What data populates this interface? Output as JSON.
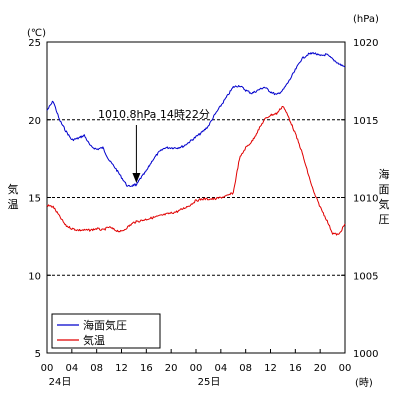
{
  "chart_data": {
    "type": "line",
    "x_axis": {
      "tick_labels": [
        "00",
        "04",
        "08",
        "12",
        "16",
        "20",
        "00",
        "04",
        "08",
        "12",
        "16",
        "20",
        "00"
      ],
      "tick_hours": [
        0,
        4,
        8,
        12,
        16,
        20,
        24,
        28,
        32,
        36,
        40,
        44,
        48
      ],
      "day_labels": [
        {
          "hour": 0,
          "text": "24日"
        },
        {
          "hour": 24,
          "text": "25日"
        }
      ],
      "unit": "(時)",
      "range": [
        0,
        48
      ]
    },
    "y_left": {
      "unit": "(℃)",
      "label": "気温",
      "range": [
        5,
        25
      ],
      "ticks": [
        5,
        10,
        15,
        20,
        25
      ],
      "tick_labels": [
        "5",
        "10",
        "15",
        "20",
        "25"
      ]
    },
    "y_right": {
      "unit": "(hPa)",
      "label": "海面気圧",
      "range": [
        1000,
        1020
      ],
      "ticks": [
        1000,
        1005,
        1010,
        1015,
        1020
      ],
      "tick_labels": [
        "1000",
        "1005",
        "1010",
        "1015",
        "1020"
      ]
    },
    "grid": "dashed horizontal lines at 10, 15, 20 ℃",
    "legend": {
      "placement": "bottom-left"
    },
    "series": [
      {
        "name": "海面気圧",
        "axis": "right",
        "color": "#0000cc",
        "points": [
          [
            0,
            1015.6
          ],
          [
            1,
            1016.2
          ],
          [
            2,
            1015
          ],
          [
            3,
            1014.3
          ],
          [
            4,
            1013.7
          ],
          [
            5,
            1013.8
          ],
          [
            6,
            1014
          ],
          [
            7,
            1013.3
          ],
          [
            8,
            1013.1
          ],
          [
            9,
            1013.2
          ],
          [
            10,
            1012.4
          ],
          [
            11,
            1011.9
          ],
          [
            12,
            1011.3
          ],
          [
            13,
            1010.7
          ],
          [
            14,
            1010.8
          ],
          [
            14.4,
            1010.8
          ],
          [
            15,
            1011.2
          ],
          [
            16,
            1011.7
          ],
          [
            17,
            1012.4
          ],
          [
            18,
            1012.9
          ],
          [
            19,
            1013.2
          ],
          [
            20,
            1013.2
          ],
          [
            21,
            1013.2
          ],
          [
            22,
            1013.3
          ],
          [
            23,
            1013.6
          ],
          [
            24,
            1013.9
          ],
          [
            25,
            1014.2
          ],
          [
            26,
            1014.6
          ],
          [
            27,
            1015.3
          ],
          [
            28,
            1015.9
          ],
          [
            29,
            1016.5
          ],
          [
            30,
            1017.1
          ],
          [
            31,
            1017.2
          ],
          [
            32,
            1016.9
          ],
          [
            33,
            1016.7
          ],
          [
            34,
            1016.9
          ],
          [
            35,
            1017.1
          ],
          [
            36,
            1016.8
          ],
          [
            37,
            1016.6
          ],
          [
            38,
            1016.9
          ],
          [
            39,
            1017.5
          ],
          [
            40,
            1018.2
          ],
          [
            41,
            1018.9
          ],
          [
            42,
            1019.2
          ],
          [
            43,
            1019.3
          ],
          [
            44,
            1019.1
          ],
          [
            45,
            1019.2
          ],
          [
            46,
            1018.9
          ],
          [
            47,
            1018.6
          ],
          [
            48,
            1018.4
          ]
        ]
      },
      {
        "name": "気温",
        "axis": "left",
        "color": "#e00000",
        "points": [
          [
            0,
            14.5
          ],
          [
            1,
            14.4
          ],
          [
            2,
            13.8
          ],
          [
            3,
            13.2
          ],
          [
            4,
            13
          ],
          [
            5,
            12.9
          ],
          [
            6,
            12.9
          ],
          [
            7,
            12.9
          ],
          [
            8,
            13
          ],
          [
            9,
            12.9
          ],
          [
            10,
            13.1
          ],
          [
            11,
            12.9
          ],
          [
            12,
            12.8
          ],
          [
            13,
            13.1
          ],
          [
            14,
            13.4
          ],
          [
            15,
            13.5
          ],
          [
            16,
            13.6
          ],
          [
            17,
            13.7
          ],
          [
            18,
            13.8
          ],
          [
            19,
            13.9
          ],
          [
            20,
            14
          ],
          [
            21,
            14.1
          ],
          [
            22,
            14.3
          ],
          [
            23,
            14.5
          ],
          [
            24,
            14.8
          ],
          [
            25,
            14.9
          ],
          [
            26,
            14.9
          ],
          [
            27,
            14.9
          ],
          [
            28,
            15
          ],
          [
            29,
            15.1
          ],
          [
            30,
            15.3
          ],
          [
            31,
            17.5
          ],
          [
            32,
            18.2
          ],
          [
            33,
            18.6
          ],
          [
            34,
            19.3
          ],
          [
            35,
            20
          ],
          [
            36,
            20.3
          ],
          [
            37,
            20.4
          ],
          [
            38,
            20.9
          ],
          [
            39,
            20.1
          ],
          [
            40,
            19.1
          ],
          [
            41,
            18
          ],
          [
            42,
            16.6
          ],
          [
            43,
            15.3
          ],
          [
            44,
            14.4
          ],
          [
            45,
            13.6
          ],
          [
            46,
            12.7
          ],
          [
            47,
            12.6
          ],
          [
            48,
            13.3
          ]
        ]
      }
    ],
    "annotation": {
      "text": "1010.8hPa 14時22分",
      "point": {
        "hour": 14.4,
        "value": 1010.8,
        "axis": "right"
      }
    }
  }
}
